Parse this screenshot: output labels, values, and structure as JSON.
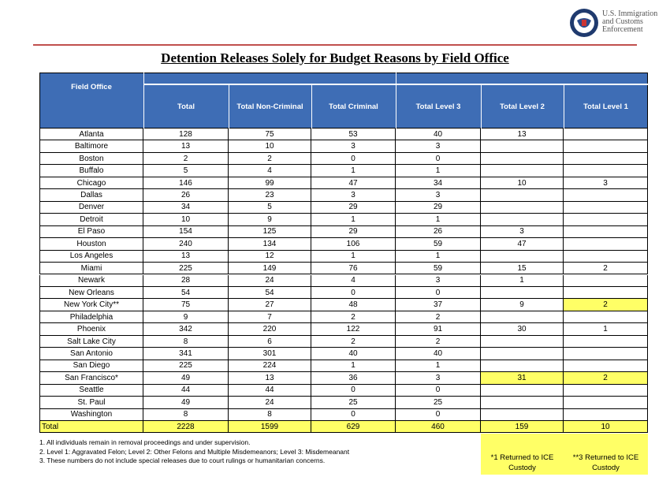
{
  "logo": {
    "lines": [
      "U.S. Immigration",
      "and Customs",
      "Enforcement"
    ]
  },
  "title": "Detention Releases Solely for Budget Reasons by Field Office",
  "table": {
    "headers": [
      "Field Office",
      "Total",
      "Total Non-Criminal",
      "Total Criminal",
      "Total Level 3",
      "Total Level 2",
      "Total Level 1"
    ],
    "rows": [
      [
        "Atlanta",
        128,
        75,
        53,
        40,
        13,
        null
      ],
      [
        "Baltimore",
        13,
        10,
        3,
        3,
        null,
        null
      ],
      [
        "Boston",
        2,
        2,
        0,
        0,
        null,
        null
      ],
      [
        "Buffalo",
        5,
        4,
        1,
        1,
        null,
        null
      ],
      [
        "Chicago",
        146,
        99,
        47,
        34,
        10,
        3
      ],
      [
        "Dallas",
        26,
        23,
        3,
        3,
        null,
        null
      ],
      [
        "Denver",
        34,
        5,
        29,
        29,
        null,
        null
      ],
      [
        "Detroit",
        10,
        9,
        1,
        1,
        null,
        null
      ],
      [
        "El Paso",
        154,
        125,
        29,
        26,
        3,
        null
      ],
      [
        "Houston",
        240,
        134,
        106,
        59,
        47,
        null
      ],
      [
        "Los Angeles",
        13,
        12,
        1,
        1,
        null,
        null
      ],
      [
        "Miami",
        225,
        149,
        76,
        59,
        15,
        2
      ],
      [
        "Newark",
        28,
        24,
        4,
        3,
        1,
        null
      ],
      [
        "New Orleans",
        54,
        54,
        0,
        0,
        null,
        null
      ],
      [
        "New York City**",
        75,
        27,
        48,
        37,
        9,
        2
      ],
      [
        "Philadelphia",
        9,
        7,
        2,
        2,
        null,
        null
      ],
      [
        "Phoenix",
        342,
        220,
        122,
        91,
        30,
        1
      ],
      [
        "Salt Lake City",
        8,
        6,
        2,
        2,
        null,
        null
      ],
      [
        "San Antonio",
        341,
        301,
        40,
        40,
        null,
        null
      ],
      [
        "San Diego",
        225,
        224,
        1,
        1,
        null,
        null
      ],
      [
        "San Francisco*",
        49,
        13,
        36,
        3,
        31,
        2
      ],
      [
        "Seattle",
        44,
        44,
        0,
        0,
        null,
        null
      ],
      [
        "St. Paul",
        49,
        24,
        25,
        25,
        null,
        null
      ],
      [
        "Washington",
        8,
        8,
        0,
        0,
        null,
        null
      ]
    ],
    "total": [
      "Total",
      2228,
      1599,
      629,
      460,
      159,
      10
    ],
    "highlighted_cells": [
      [
        14,
        6
      ],
      [
        20,
        5
      ],
      [
        20,
        6
      ]
    ],
    "highlight_color": "#ffff66",
    "header_color": "#3e6db5"
  },
  "notes": [
    "1. All individuals remain in removal proceedings and under supervision.",
    "2. Level 1: Aggravated Felon; Level 2: Other Felons and Multiple Misdemeanors; Level 3: Misdemeanant",
    "3. These numbers do not include special releases due to court rulings or humanitarian concerns."
  ],
  "footnote_boxes": [
    "*1 Returned to ICE Custody",
    "**3 Returned to ICE Custody"
  ]
}
